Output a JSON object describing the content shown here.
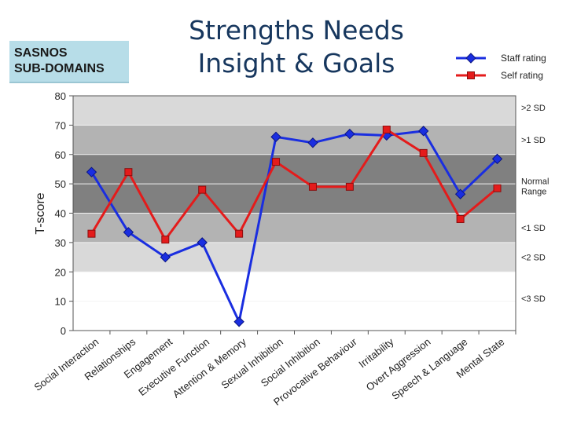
{
  "corner_box": {
    "line1": "SASNOS",
    "line2": "SUB-DOMAINS"
  },
  "slide_title": {
    "line1": "Strengths Needs",
    "line2": "Insight & Goals"
  },
  "chart_data": {
    "type": "line",
    "ylabel": "T-score",
    "ylim": [
      0,
      80
    ],
    "yticks": [
      0,
      10,
      20,
      30,
      40,
      50,
      60,
      70,
      80
    ],
    "categories": [
      "Social Interaction",
      "Relationships",
      "Engagement",
      "Executive Function",
      "Attention & Memory",
      "Sexual Inhibition",
      "Social Inhibition",
      "Provocative Behaviour",
      "Irritability",
      "Overt Aggression",
      "Speech & Language",
      "Mental State"
    ],
    "series": [
      {
        "name": "Staff rating",
        "color": "#1a2ee0",
        "marker": "diamond",
        "values": [
          54,
          33.5,
          25,
          30,
          3,
          66,
          64,
          67,
          66.5,
          68,
          46.5,
          58.5
        ]
      },
      {
        "name": "Self rating",
        "color": "#e41b1b",
        "marker": "square",
        "values": [
          33,
          54,
          31,
          48,
          33,
          57.5,
          49,
          49,
          68.5,
          60.5,
          38,
          48.5
        ]
      }
    ],
    "bands": [
      {
        "from": 70,
        "to": 80,
        "color": "#d9d9d9"
      },
      {
        "from": 60,
        "to": 70,
        "color": "#b3b3b3"
      },
      {
        "from": 40,
        "to": 60,
        "color": "#808080"
      },
      {
        "from": 30,
        "to": 40,
        "color": "#b3b3b3"
      },
      {
        "from": 20,
        "to": 30,
        "color": "#d9d9d9"
      },
      {
        "from": 0,
        "to": 20,
        "color": "#ffffff"
      }
    ],
    "band_labels": [
      {
        "text": ">2 SD",
        "y": 76
      },
      {
        "text": ">1 SD",
        "y": 65
      },
      {
        "text": "Normal",
        "y": 51
      },
      {
        "text": "Range",
        "y": 47.5
      },
      {
        "text": "<1 SD",
        "y": 35
      },
      {
        "text": "<2 SD",
        "y": 25
      },
      {
        "text": "<3 SD",
        "y": 11
      }
    ],
    "legend": "top-right"
  }
}
